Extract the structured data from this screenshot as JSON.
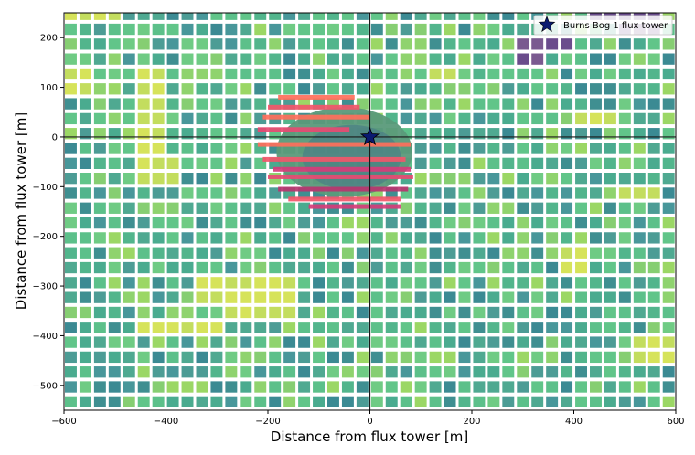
{
  "chart_data": {
    "type": "heatmap",
    "xlabel": "Distance from flux tower [m]",
    "ylabel": "Distance from flux tower [m]",
    "xlim": [
      -600,
      600
    ],
    "ylim": [
      -550,
      250
    ],
    "x_ticks": [
      -600,
      -400,
      -200,
      0,
      200,
      400,
      600
    ],
    "y_ticks": [
      -500,
      -400,
      -300,
      -200,
      -100,
      0,
      100,
      200
    ],
    "grid": false,
    "legend": {
      "position": "top-right",
      "entries": [
        "Burns Bog 1 flux tower"
      ]
    },
    "tower": {
      "name": "Burns Bog 1 flux tower",
      "x": 0,
      "y": 0,
      "marker": "star",
      "color": "#0a1a70"
    },
    "reference_lines": {
      "x": 0,
      "y": 0
    },
    "grid_cells": {
      "x_start": -600,
      "x_step": 28.6,
      "y_start": -550,
      "y_step": 30,
      "colormap": "viridis"
    },
    "yellow_patches": [
      {
        "x": [
          -600,
          -510
        ],
        "y": [
          225,
          250
        ]
      },
      {
        "x": [
          -600,
          -560
        ],
        "y": [
          80,
          130
        ]
      },
      {
        "x": [
          -460,
          -420
        ],
        "y": [
          -120,
          130
        ]
      },
      {
        "x": [
          -420,
          -380
        ],
        "y": [
          -100,
          -50
        ]
      },
      {
        "x": [
          -350,
          -160
        ],
        "y": [
          -340,
          -300
        ]
      },
      {
        "x": [
          -300,
          -160
        ],
        "y": [
          -380,
          -340
        ]
      },
      {
        "x": [
          -480,
          -300
        ],
        "y": [
          -410,
          -370
        ]
      },
      {
        "x": [
          100,
          160
        ],
        "y": [
          100,
          130
        ]
      },
      {
        "x": [
          400,
          480
        ],
        "y": [
          0,
          40
        ]
      },
      {
        "x": [
          460,
          560
        ],
        "y": [
          -140,
          -100
        ]
      },
      {
        "x": [
          500,
          580
        ],
        "y": [
          -480,
          -420
        ]
      },
      {
        "x": [
          350,
          420
        ],
        "y": [
          -300,
          -240
        ]
      }
    ],
    "purple_patches": [
      {
        "x": [
          260,
          400
        ],
        "y": [
          160,
          200
        ]
      },
      {
        "x": [
          260,
          320
        ],
        "y": [
          130,
          160
        ]
      },
      {
        "x": [
          420,
          560
        ],
        "y": [
          220,
          250
        ]
      },
      {
        "x": [
          470,
          560
        ],
        "y": [
          190,
          220
        ]
      }
    ],
    "footprint": {
      "center": [
        -50,
        -30
      ],
      "radius_x": 215,
      "radius_y": 145,
      "base_color": "#5a9a7a",
      "stripe_colors": [
        "#ff6f5b",
        "#f2566a",
        "#e84a72",
        "#d63c7a",
        "#b8346f"
      ],
      "stripes": [
        {
          "y": 80,
          "x": [
            -180,
            -30
          ],
          "c": 0
        },
        {
          "y": 60,
          "x": [
            -200,
            -20
          ],
          "c": 1
        },
        {
          "y": 40,
          "x": [
            -210,
            0
          ],
          "c": 0
        },
        {
          "y": 15,
          "x": [
            -220,
            -40
          ],
          "c": 2
        },
        {
          "y": -15,
          "x": [
            -220,
            80
          ],
          "c": 0
        },
        {
          "y": -45,
          "x": [
            -210,
            70
          ],
          "c": 1
        },
        {
          "y": -65,
          "x": [
            -190,
            80
          ],
          "c": 3
        },
        {
          "y": -80,
          "x": [
            -200,
            85
          ],
          "c": 2
        },
        {
          "y": -105,
          "x": [
            -180,
            75
          ],
          "c": 4
        },
        {
          "y": -125,
          "x": [
            -160,
            60
          ],
          "c": 1
        },
        {
          "y": -140,
          "x": [
            -120,
            60
          ],
          "c": 3
        }
      ]
    }
  }
}
